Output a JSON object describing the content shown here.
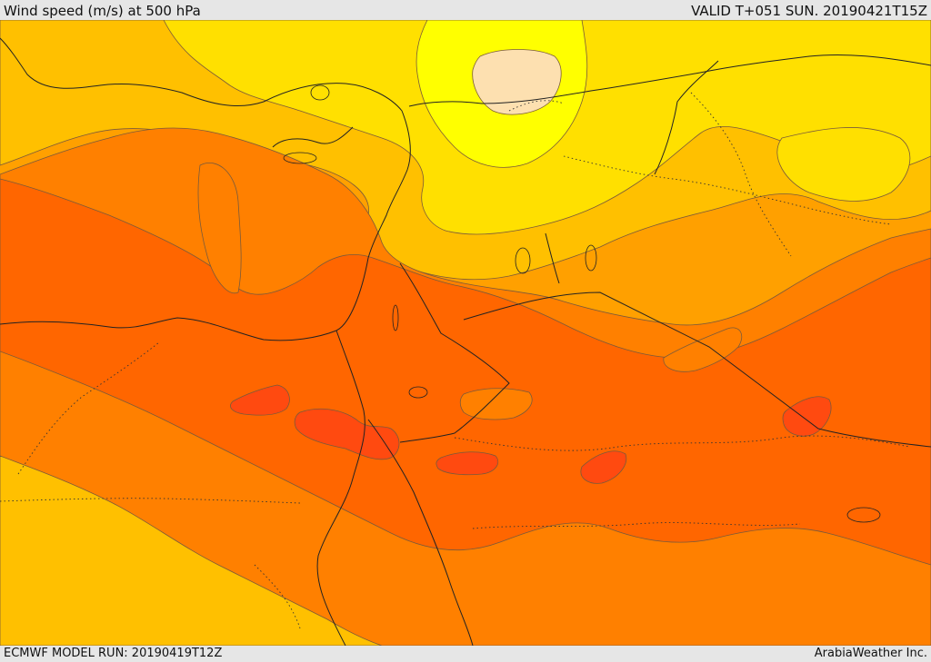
{
  "header": {
    "title": "Wind speed (m/s) at 500 hPa",
    "valid_time": "VALID T+051 SUN. 20190421T15Z"
  },
  "footer": {
    "model_run": "ECMWF MODEL RUN: 20190419T12Z",
    "credit": "ArabiaWeather Inc."
  },
  "colors": {
    "band_yellow_bright": "#ffff00",
    "band_yellow": "#ffe000",
    "band_gold": "#ffc000",
    "band_orange_light": "#ffa000",
    "band_orange": "#ff8000",
    "band_orange_dark": "#ff6600",
    "band_red_orange": "#ff4a10",
    "band_peach": "#fde0b0",
    "coastline": "#222222",
    "contour": "#7a5a3a"
  }
}
